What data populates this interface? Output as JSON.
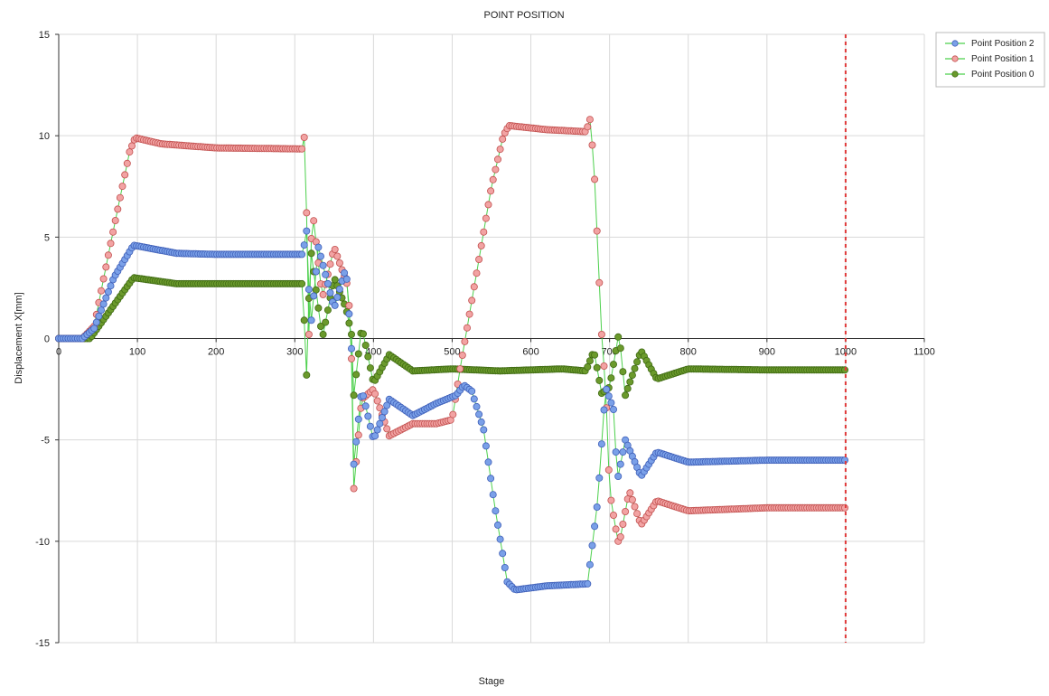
{
  "chart_data": {
    "type": "line",
    "title": "POINT POSITION",
    "xlabel": "Stage",
    "ylabel": "Displacement X[mm]",
    "xlim": [
      0,
      1100
    ],
    "ylim": [
      -15,
      15
    ],
    "xticks": [
      0,
      100,
      200,
      300,
      400,
      500,
      600,
      700,
      800,
      900,
      1000,
      1100
    ],
    "yticks": [
      -15,
      -10,
      -5,
      0,
      5,
      10,
      15
    ],
    "grid": true,
    "legend_position": "top-right",
    "reference_line": {
      "x": 1000,
      "style": "dashed",
      "color": "#e03a3a"
    },
    "colors": {
      "series_2_fill": "#7aa0e8",
      "series_2_stroke": "#3f5fb8",
      "series_1_fill": "#f2a3a3",
      "series_1_stroke": "#c2504f",
      "series_0_fill": "#6b9a2c",
      "series_0_stroke": "#3f6a13",
      "connector_line": "#4cd04c"
    },
    "series": [
      {
        "name": "Point Position 2",
        "key": "p2",
        "keypoints": [
          [
            0,
            0
          ],
          [
            30,
            0
          ],
          [
            45,
            0.5
          ],
          [
            70,
            3
          ],
          [
            95,
            4.6
          ],
          [
            150,
            4.2
          ],
          [
            200,
            4.15
          ],
          [
            310,
            4.15
          ],
          [
            315,
            5.3
          ],
          [
            320,
            0.5
          ],
          [
            330,
            4.5
          ],
          [
            350,
            1.5
          ],
          [
            365,
            3.5
          ],
          [
            372,
            -0.5
          ],
          [
            375,
            -6.2
          ],
          [
            385,
            -2.5
          ],
          [
            400,
            -5
          ],
          [
            420,
            -3
          ],
          [
            450,
            -3.8
          ],
          [
            480,
            -3.2
          ],
          [
            505,
            -2.8
          ],
          [
            515,
            -2.3
          ],
          [
            525,
            -2.6
          ],
          [
            540,
            -4.5
          ],
          [
            555,
            -8.5
          ],
          [
            570,
            -12
          ],
          [
            580,
            -12.4
          ],
          [
            620,
            -12.2
          ],
          [
            672,
            -12.1
          ],
          [
            685,
            -8
          ],
          [
            695,
            -2.4
          ],
          [
            705,
            -3.5
          ],
          [
            710,
            -7
          ],
          [
            720,
            -5
          ],
          [
            740,
            -6.8
          ],
          [
            760,
            -5.6
          ],
          [
            800,
            -6.1
          ],
          [
            900,
            -6
          ],
          [
            1000,
            -6
          ]
        ]
      },
      {
        "name": "Point Position 1",
        "key": "p1",
        "keypoints": [
          [
            0,
            0
          ],
          [
            30,
            0
          ],
          [
            45,
            0.6
          ],
          [
            65,
            4.5
          ],
          [
            90,
            9.2
          ],
          [
            97,
            9.9
          ],
          [
            130,
            9.6
          ],
          [
            200,
            9.4
          ],
          [
            310,
            9.35
          ],
          [
            313,
            10.2
          ],
          [
            318,
            0.2
          ],
          [
            322,
            6.5
          ],
          [
            335,
            2
          ],
          [
            350,
            4.5
          ],
          [
            368,
            2.5
          ],
          [
            372,
            -1
          ],
          [
            375,
            -7.4
          ],
          [
            385,
            -3
          ],
          [
            400,
            -2.5
          ],
          [
            420,
            -4.8
          ],
          [
            450,
            -4.2
          ],
          [
            480,
            -4.2
          ],
          [
            500,
            -4
          ],
          [
            510,
            -1.5
          ],
          [
            530,
            3
          ],
          [
            550,
            7.5
          ],
          [
            565,
            10
          ],
          [
            572,
            10.5
          ],
          [
            620,
            10.3
          ],
          [
            670,
            10.2
          ],
          [
            675,
            10.8
          ],
          [
            680,
            8.7
          ],
          [
            690,
            0.2
          ],
          [
            695,
            -2.4
          ],
          [
            700,
            -7.5
          ],
          [
            707,
            -9.2
          ],
          [
            712,
            -10.2
          ],
          [
            725,
            -7.5
          ],
          [
            740,
            -9.2
          ],
          [
            760,
            -8
          ],
          [
            800,
            -8.5
          ],
          [
            900,
            -8.35
          ],
          [
            1000,
            -8.35
          ]
        ]
      },
      {
        "name": "Point Position 0",
        "key": "p0",
        "keypoints": [
          [
            0,
            0
          ],
          [
            40,
            0
          ],
          [
            60,
            1.1
          ],
          [
            95,
            3
          ],
          [
            150,
            2.7
          ],
          [
            200,
            2.7
          ],
          [
            310,
            2.7
          ],
          [
            315,
            -1.8
          ],
          [
            320,
            4.5
          ],
          [
            335,
            0
          ],
          [
            350,
            3
          ],
          [
            365,
            1.5
          ],
          [
            372,
            0.2
          ],
          [
            375,
            -2.8
          ],
          [
            385,
            0.6
          ],
          [
            400,
            -2.2
          ],
          [
            420,
            -0.8
          ],
          [
            450,
            -1.6
          ],
          [
            500,
            -1.5
          ],
          [
            560,
            -1.6
          ],
          [
            640,
            -1.5
          ],
          [
            670,
            -1.6
          ],
          [
            680,
            -0.6
          ],
          [
            690,
            -2.7
          ],
          [
            700,
            -2.4
          ],
          [
            712,
            0.3
          ],
          [
            720,
            -2.8
          ],
          [
            740,
            -0.6
          ],
          [
            760,
            -2
          ],
          [
            800,
            -1.5
          ],
          [
            900,
            -1.55
          ],
          [
            1000,
            -1.55
          ]
        ]
      }
    ]
  }
}
